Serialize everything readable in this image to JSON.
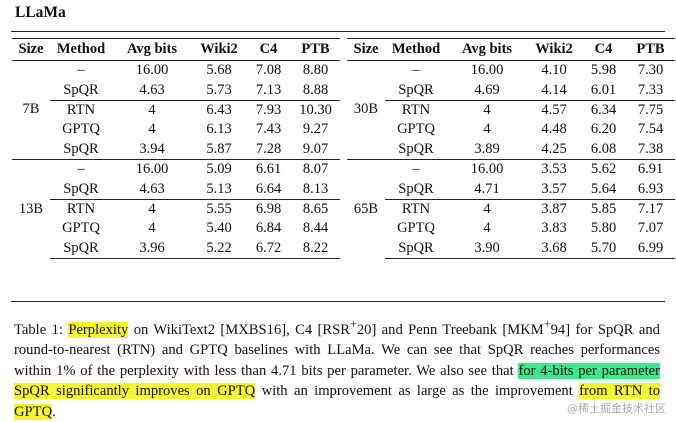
{
  "title": "LLaMa",
  "headers": [
    "Size",
    "Method",
    "Avg bits",
    "Wiki2",
    "C4",
    "PTB"
  ],
  "left_groups": [
    {
      "size": "7B",
      "rows": [
        {
          "method": "–",
          "bits": "16.00",
          "wiki2": "5.68",
          "c4": "7.08",
          "ptb": "8.80"
        },
        {
          "method": "SpQR",
          "bits": "4.63",
          "wiki2": "5.73",
          "c4": "7.13",
          "ptb": "8.88"
        },
        {
          "method": "RTN",
          "bits": "4",
          "wiki2": "6.43",
          "c4": "7.93",
          "ptb": "10.30"
        },
        {
          "method": "GPTQ",
          "bits": "4",
          "wiki2": "6.13",
          "c4": "7.43",
          "ptb": "9.27"
        },
        {
          "method": "SpQR",
          "bits": "3.94",
          "wiki2": "5.87",
          "c4": "7.28",
          "ptb": "9.07"
        }
      ]
    },
    {
      "size": "13B",
      "rows": [
        {
          "method": "–",
          "bits": "16.00",
          "wiki2": "5.09",
          "c4": "6.61",
          "ptb": "8.07"
        },
        {
          "method": "SpQR",
          "bits": "4.63",
          "wiki2": "5.13",
          "c4": "6.64",
          "ptb": "8.13"
        },
        {
          "method": "RTN",
          "bits": "4",
          "wiki2": "5.55",
          "c4": "6.98",
          "ptb": "8.65"
        },
        {
          "method": "GPTQ",
          "bits": "4",
          "wiki2": "5.40",
          "c4": "6.84",
          "ptb": "8.44"
        },
        {
          "method": "SpQR",
          "bits": "3.96",
          "wiki2": "5.22",
          "c4": "6.72",
          "ptb": "8.22"
        }
      ]
    }
  ],
  "right_groups": [
    {
      "size": "30B",
      "rows": [
        {
          "method": "–",
          "bits": "16.00",
          "wiki2": "4.10",
          "c4": "5.98",
          "ptb": "7.30"
        },
        {
          "method": "SpQR",
          "bits": "4.69",
          "wiki2": "4.14",
          "c4": "6.01",
          "ptb": "7.33"
        },
        {
          "method": "RTN",
          "bits": "4",
          "wiki2": "4.57",
          "c4": "6.34",
          "ptb": "7.75"
        },
        {
          "method": "GPTQ",
          "bits": "4",
          "wiki2": "4.48",
          "c4": "6.20",
          "ptb": "7.54"
        },
        {
          "method": "SpQR",
          "bits": "3.89",
          "wiki2": "4.25",
          "c4": "6.08",
          "ptb": "7.38"
        }
      ]
    },
    {
      "size": "65B",
      "rows": [
        {
          "method": "–",
          "bits": "16.00",
          "wiki2": "3.53",
          "c4": "5.62",
          "ptb": "6.91"
        },
        {
          "method": "SpQR",
          "bits": "4.71",
          "wiki2": "3.57",
          "c4": "5.64",
          "ptb": "6.93"
        },
        {
          "method": "RTN",
          "bits": "4",
          "wiki2": "3.87",
          "c4": "5.85",
          "ptb": "7.17"
        },
        {
          "method": "GPTQ",
          "bits": "4",
          "wiki2": "3.83",
          "c4": "5.80",
          "ptb": "7.07"
        },
        {
          "method": "SpQR",
          "bits": "3.90",
          "wiki2": "3.68",
          "c4": "5.70",
          "ptb": "6.99"
        }
      ]
    }
  ],
  "caption": {
    "prefix": "Table 1: ",
    "hl1": "Perplexity",
    "part2": " on WikiText2 [MXBS16], C4 [RSR",
    "sup1": "+",
    "part3": "20] and Penn Treebank [MKM",
    "sup2": "+",
    "part4": "94] for SpQR and round-to-nearest (RTN) and GPTQ baselines with LLaMa. We can see that SpQR reaches performances within 1% of the perplexity with less than 4.71 bits per parameter. We also see that ",
    "hl2": "for 4-bits per parameter",
    "part5": " ",
    "hl3": "SpQR significantly improves on GPTQ",
    "part6": " with an improvement as large as the improvement ",
    "hl4": "from RTN to GPTQ",
    "part7": "."
  },
  "watermark": "@稀土掘金技术社区",
  "colors": {
    "highlight_yellow": "#f7f730",
    "highlight_green": "#3de78f"
  }
}
